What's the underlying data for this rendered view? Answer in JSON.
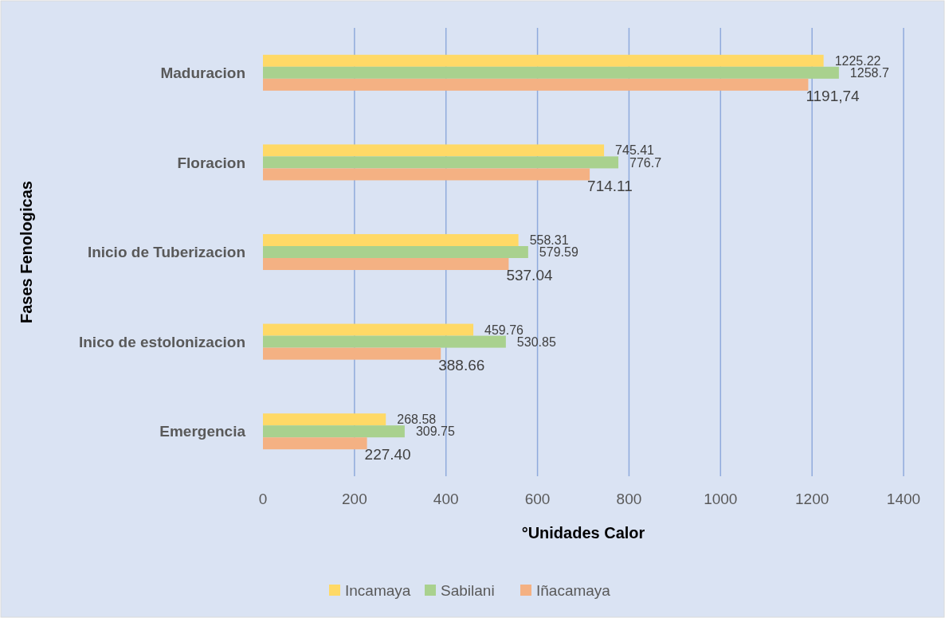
{
  "chart_data": {
    "type": "bar",
    "orientation": "horizontal",
    "xlabel": "°Unidades Calor",
    "ylabel": "Fases Fenologicas",
    "categories": [
      "Maduracion",
      "Floracion",
      "Inicio de Tuberizacion",
      "Inico de estolonizacion",
      "Emergencia"
    ],
    "series": [
      {
        "name": "Incamaya",
        "color": "#ffd966",
        "values": [
          1225.22,
          745.41,
          558.31,
          459.76,
          268.58
        ],
        "value_labels": [
          "1225.22",
          "745.41",
          "558.31",
          "459.76",
          "268.58"
        ]
      },
      {
        "name": "Sabilani",
        "color": "#a9d18e",
        "values": [
          1258.7,
          776.7,
          579.59,
          530.85,
          309.75
        ],
        "value_labels": [
          "1258.7",
          "776.7",
          "579.59",
          "530.85",
          "309.75"
        ]
      },
      {
        "name": "Iñacamaya",
        "color": "#f4b183",
        "values": [
          1191.74,
          714.11,
          537.04,
          388.66,
          227.4
        ],
        "value_labels": [
          "1191,74",
          "714.11",
          "537.04",
          "388.66",
          "227.40"
        ]
      }
    ],
    "xlim": [
      0,
      1400
    ],
    "xticks": [
      0,
      200,
      400,
      600,
      800,
      1000,
      1200,
      1400
    ],
    "grid": "x",
    "legend": "bottom"
  }
}
